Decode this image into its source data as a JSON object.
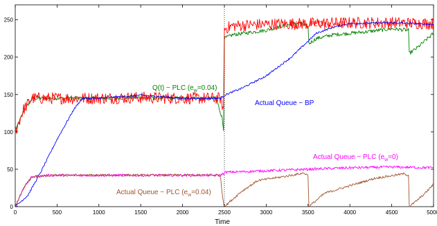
{
  "chart_data": {
    "type": "line",
    "title": "",
    "xlabel": "Time",
    "ylabel": "",
    "xlim": [
      0,
      5000
    ],
    "ylim": [
      0,
      270
    ],
    "xticks": [
      0,
      500,
      1000,
      1500,
      2000,
      2500,
      3000,
      3500,
      4000,
      4500,
      5000
    ],
    "yticks": [
      0,
      50,
      100,
      150,
      200,
      250
    ],
    "grid": false,
    "vline_x": 2500,
    "annotations": {
      "q_plc_ew0": {
        "main": "Q(t) − PLC (e",
        "sub": "w",
        "tail": "=0)",
        "color": "#ff0000"
      },
      "q_plc_ew004": {
        "main": "Q(t) − PLC (e",
        "sub": "w",
        "tail": "=0.04)",
        "color": "#008000"
      },
      "actual_bp": {
        "main": "Actual Queue − BP",
        "sub": "",
        "tail": "",
        "color": "#0000ff"
      },
      "actual_plc_ew0": {
        "main": "Actual Queue − PLC (e",
        "sub": "w",
        "tail": "=0)",
        "color": "#ff00ff"
      },
      "actual_plc_ew004": {
        "main": "Actual Queue − PLC (e",
        "sub": "w",
        "tail": "=0.04)",
        "color": "#a0522d"
      }
    },
    "series": [
      {
        "key": "q_plc_ew004",
        "color": "#008000",
        "noise": 2.5,
        "points": [
          [
            0,
            100
          ],
          [
            100,
            128
          ],
          [
            200,
            145
          ],
          [
            500,
            145
          ],
          [
            1000,
            145
          ],
          [
            1500,
            146
          ],
          [
            2000,
            145
          ],
          [
            2400,
            145
          ],
          [
            2470,
            120
          ],
          [
            2490,
            104
          ],
          [
            2500,
            225
          ],
          [
            2600,
            230
          ],
          [
            2800,
            233
          ],
          [
            3000,
            236
          ],
          [
            3200,
            242
          ],
          [
            3400,
            246
          ],
          [
            3500,
            240
          ],
          [
            3510,
            218
          ],
          [
            3600,
            225
          ],
          [
            3800,
            230
          ],
          [
            4000,
            232
          ],
          [
            4200,
            234
          ],
          [
            4500,
            238
          ],
          [
            4700,
            236
          ],
          [
            4710,
            205
          ],
          [
            4800,
            212
          ],
          [
            5000,
            232
          ]
        ]
      },
      {
        "key": "q_plc_ew0",
        "color": "#ff0000",
        "noise": 8,
        "points": [
          [
            0,
            100
          ],
          [
            100,
            130
          ],
          [
            200,
            145
          ],
          [
            500,
            145
          ],
          [
            1000,
            145
          ],
          [
            1500,
            146
          ],
          [
            2000,
            145
          ],
          [
            2450,
            145
          ],
          [
            2490,
            130
          ],
          [
            2500,
            238
          ],
          [
            2600,
            242
          ],
          [
            3000,
            244
          ],
          [
            3500,
            245
          ],
          [
            4000,
            246
          ],
          [
            4500,
            246
          ],
          [
            5000,
            245
          ]
        ]
      },
      {
        "key": "actual_bp",
        "color": "#0000ff",
        "noise": 1.2,
        "points": [
          [
            0,
            0
          ],
          [
            150,
            15
          ],
          [
            300,
            45
          ],
          [
            500,
            90
          ],
          [
            700,
            130
          ],
          [
            800,
            145
          ],
          [
            1000,
            145
          ],
          [
            1500,
            149
          ],
          [
            2000,
            145
          ],
          [
            2450,
            145
          ],
          [
            2520,
            150
          ],
          [
            2700,
            158
          ],
          [
            3000,
            175
          ],
          [
            3300,
            200
          ],
          [
            3600,
            232
          ],
          [
            3800,
            240
          ],
          [
            4000,
            245
          ],
          [
            4500,
            246
          ],
          [
            5000,
            244
          ]
        ]
      },
      {
        "key": "actual_plc_ew0",
        "color": "#ff00ff",
        "noise": 1.8,
        "points": [
          [
            0,
            0
          ],
          [
            100,
            25
          ],
          [
            200,
            40
          ],
          [
            400,
            42
          ],
          [
            1000,
            42
          ],
          [
            2000,
            42
          ],
          [
            2450,
            42
          ],
          [
            2520,
            46
          ],
          [
            3000,
            48
          ],
          [
            3500,
            50
          ],
          [
            4000,
            52
          ],
          [
            4500,
            53
          ],
          [
            5000,
            52
          ]
        ]
      },
      {
        "key": "actual_plc_ew004",
        "color": "#a0522d",
        "noise": 1.5,
        "points": [
          [
            0,
            0
          ],
          [
            100,
            25
          ],
          [
            200,
            40
          ],
          [
            500,
            42
          ],
          [
            1000,
            42
          ],
          [
            2000,
            42
          ],
          [
            2450,
            42
          ],
          [
            2480,
            12
          ],
          [
            2500,
            0
          ],
          [
            2700,
            20
          ],
          [
            2900,
            35
          ],
          [
            3200,
            40
          ],
          [
            3450,
            45
          ],
          [
            3500,
            42
          ],
          [
            3510,
            0
          ],
          [
            3700,
            18
          ],
          [
            4000,
            28
          ],
          [
            4300,
            38
          ],
          [
            4650,
            44
          ],
          [
            4700,
            42
          ],
          [
            4710,
            0
          ],
          [
            4800,
            8
          ],
          [
            4900,
            18
          ],
          [
            5000,
            30
          ]
        ]
      }
    ]
  }
}
